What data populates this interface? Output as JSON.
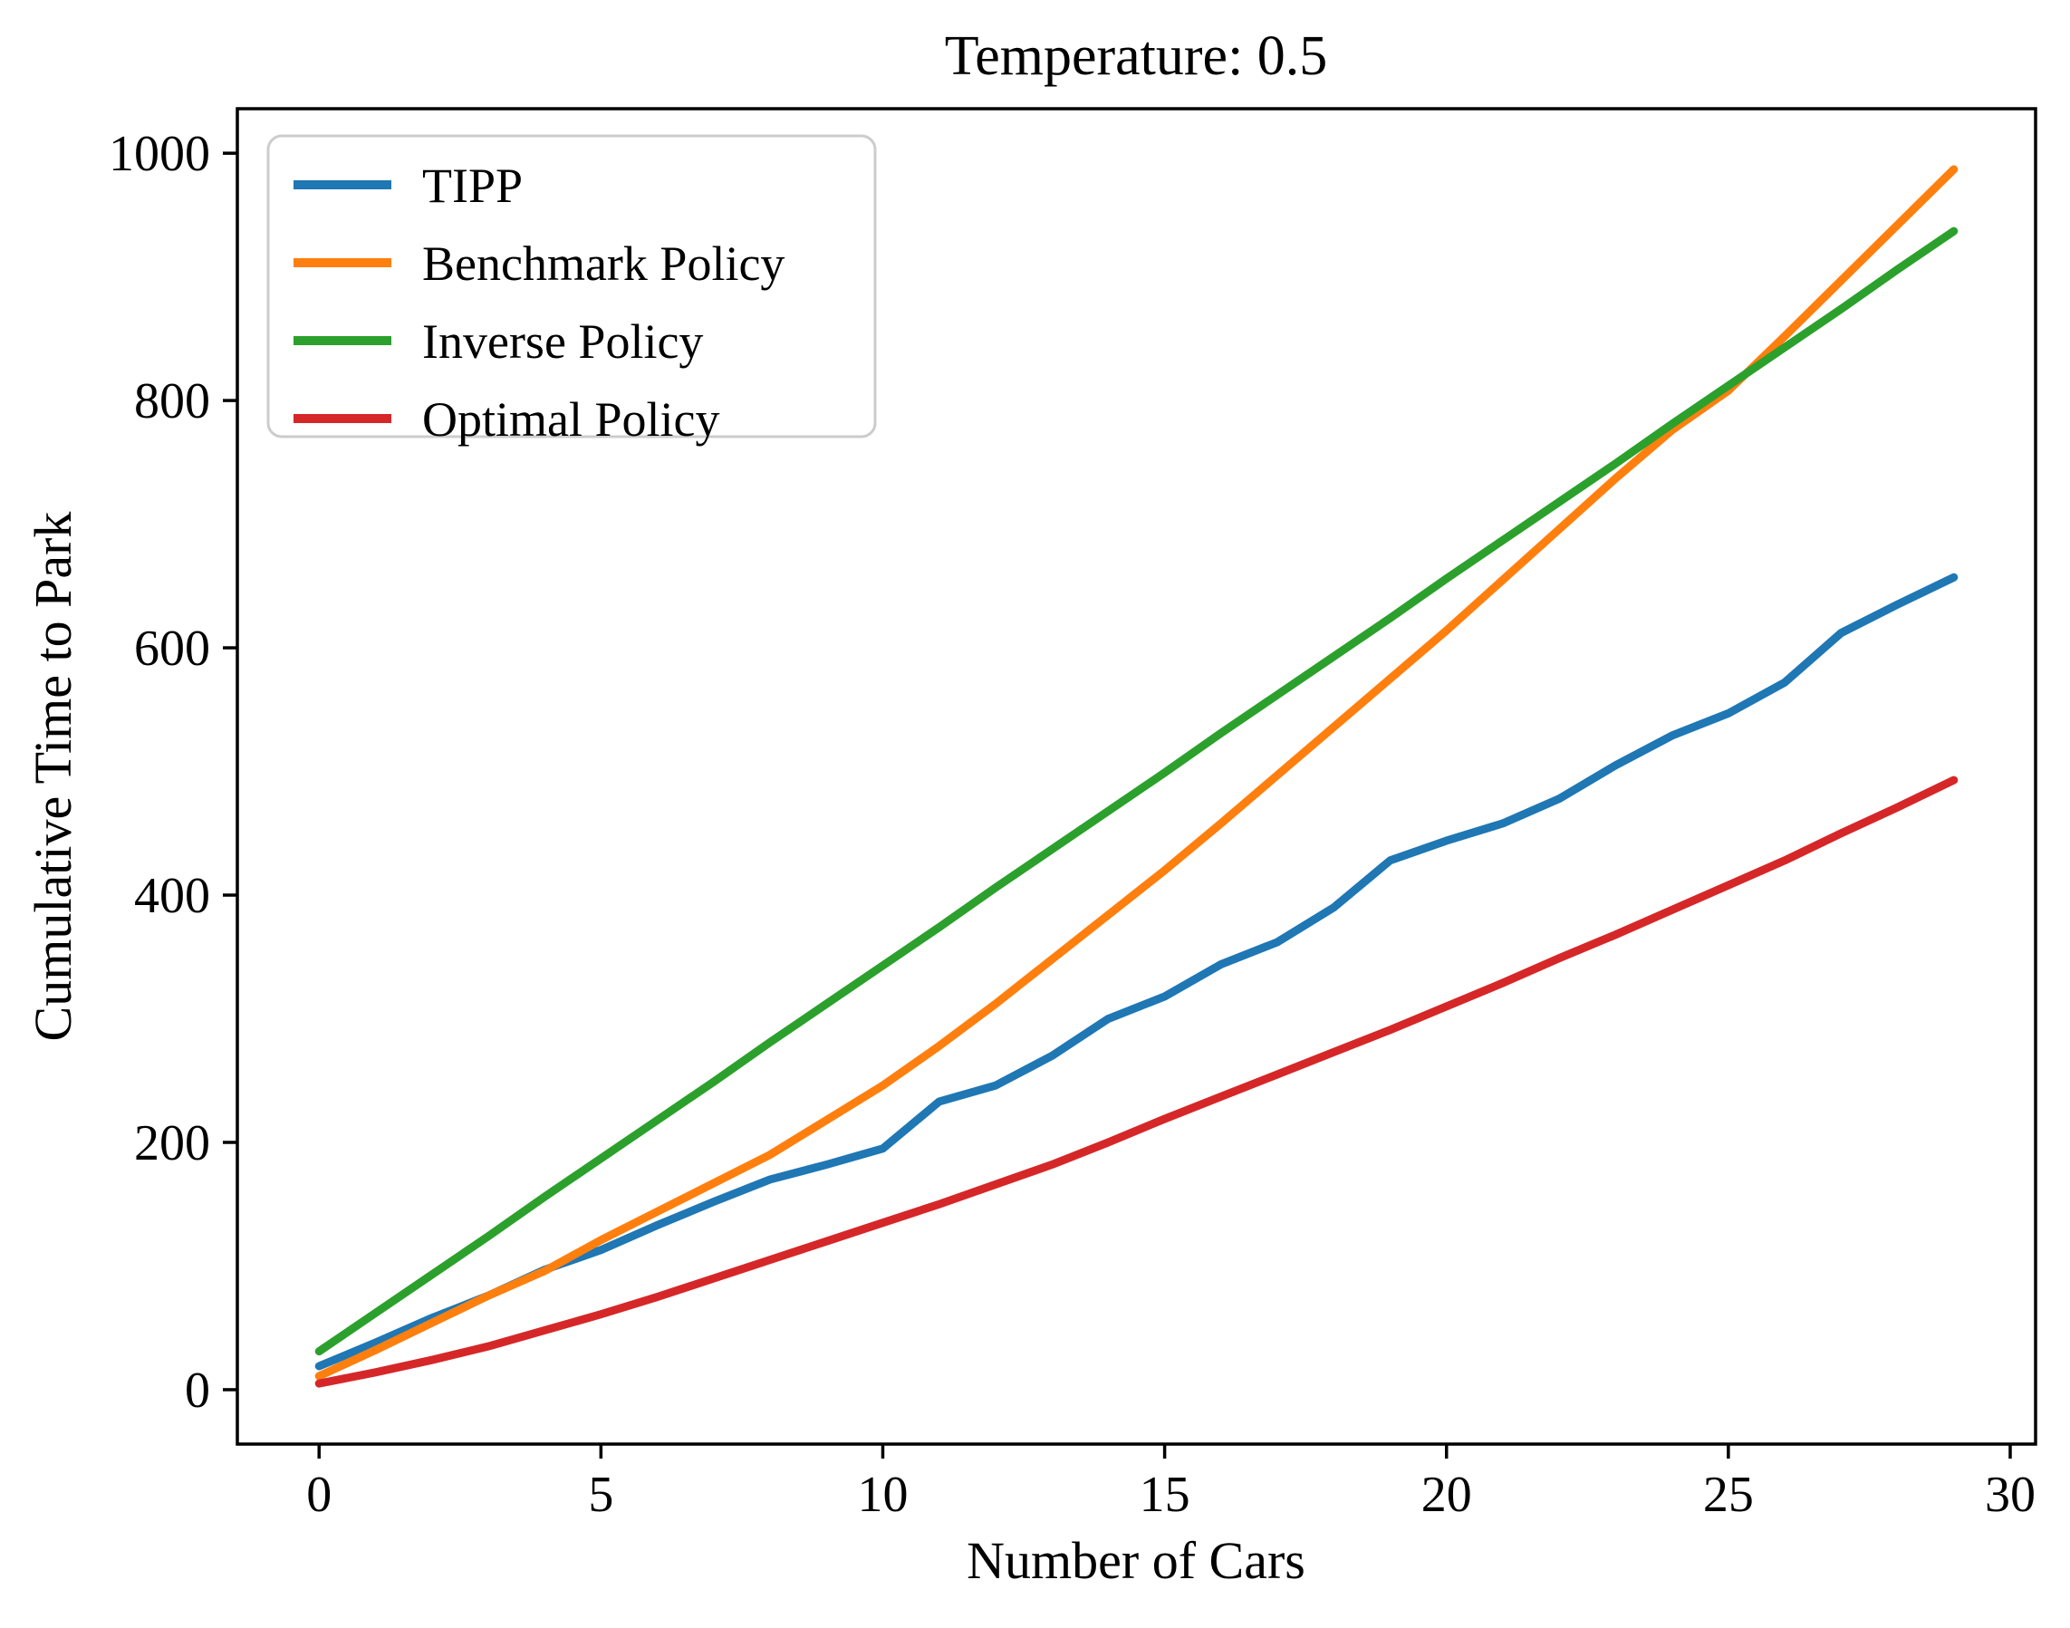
{
  "figure": {
    "background": "#ffffff",
    "axis_color": "#000000"
  },
  "chart_data": {
    "type": "line",
    "title": "Temperature:  0.5",
    "xlabel": "Number of Cars",
    "ylabel": "Cumulative Time to Park",
    "x": [
      0,
      1,
      2,
      3,
      4,
      5,
      6,
      7,
      8,
      9,
      10,
      11,
      12,
      13,
      14,
      15,
      16,
      17,
      18,
      19,
      20,
      21,
      22,
      23,
      24,
      25,
      26,
      27,
      28,
      29
    ],
    "series": [
      {
        "name": "TIPP",
        "color": "#1f77b4",
        "values": [
          19,
          38,
          58,
          76,
          97,
          113,
          133,
          152,
          170,
          182,
          195,
          233,
          246,
          270,
          300,
          318,
          344,
          362,
          390,
          428,
          444,
          458,
          478,
          505,
          529,
          547,
          572,
          612,
          635,
          657
        ]
      },
      {
        "name": "Benchmark Policy",
        "color": "#ff7f0e",
        "values": [
          11,
          32,
          54,
          76,
          96,
          121,
          144,
          167,
          190,
          218,
          246,
          278,
          312,
          348,
          384,
          420,
          458,
          497,
          536,
          575,
          614,
          655,
          696,
          737,
          776,
          808,
          852,
          897,
          942,
          987
        ]
      },
      {
        "name": "Inverse Policy",
        "color": "#2ca02c",
        "values": [
          31,
          62,
          93,
          124,
          156,
          187,
          218,
          249,
          281,
          312,
          343,
          374,
          406,
          437,
          468,
          499,
          531,
          562,
          593,
          624,
          656,
          687,
          718,
          749,
          781,
          812,
          843,
          874,
          906,
          937
        ]
      },
      {
        "name": "Optimal Policy",
        "color": "#d62728",
        "values": [
          5,
          14,
          24,
          35,
          48,
          61,
          75,
          90,
          105,
          120,
          135,
          150,
          166,
          182,
          200,
          219,
          237,
          255,
          273,
          291,
          310,
          329,
          349,
          368,
          388,
          408,
          428,
          450,
          471,
          493
        ]
      }
    ],
    "xlim": [
      -1.45,
      30.45
    ],
    "ylim": [
      -44,
      1036
    ],
    "xticks": [
      0,
      5,
      10,
      15,
      20,
      25,
      30
    ],
    "yticks": [
      0,
      200,
      400,
      600,
      800,
      1000
    ],
    "grid": false,
    "legend": {
      "position": "upper-left",
      "labels": [
        "TIPP",
        "Benchmark Policy",
        "Inverse Policy",
        "Optimal Policy"
      ]
    }
  }
}
